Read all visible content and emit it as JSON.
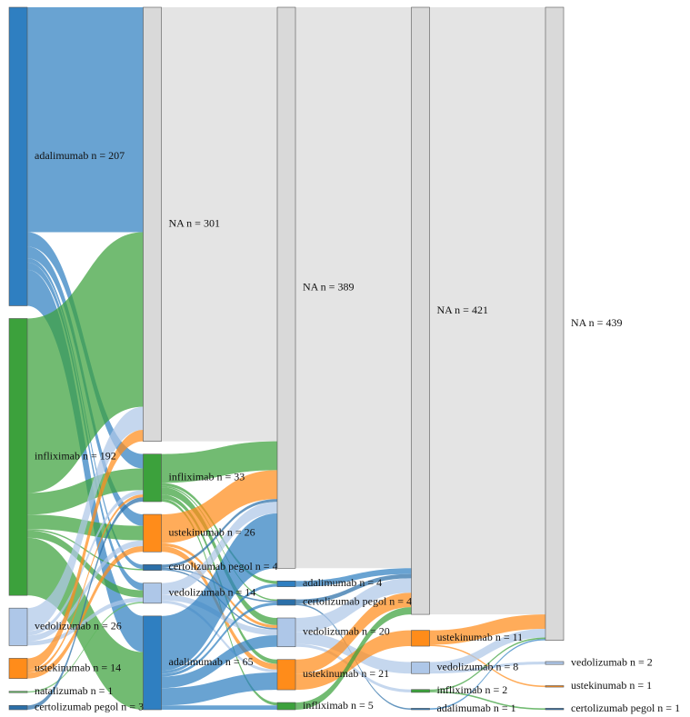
{
  "chart_data": {
    "type": "sankey",
    "columns": [
      {
        "nodes": [
          {
            "label": "adalimumab n = 207",
            "value": 207,
            "color": "#2f7fc1"
          },
          {
            "label": "infliximab n = 192",
            "value": 192,
            "color": "#3ca13c"
          },
          {
            "label": "vedolizumab n = 26",
            "value": 26,
            "color": "#aec7e8"
          },
          {
            "label": "ustekinumab n = 14",
            "value": 14,
            "color": "#ff8c1a"
          },
          {
            "label": "natalizumab n = 1",
            "value": 1,
            "color": "#5fb85f"
          },
          {
            "label": "certolizumab pegol n = 3",
            "value": 3,
            "color": "#2b6fa8"
          }
        ]
      },
      {
        "nodes": [
          {
            "label": "NA n = 301",
            "value": 301,
            "color": "#d9d9d9"
          },
          {
            "label": "infliximab n = 33",
            "value": 33,
            "color": "#3ca13c"
          },
          {
            "label": "ustekinumab n = 26",
            "value": 26,
            "color": "#ff8c1a"
          },
          {
            "label": "certolizumab pegol n = 4",
            "value": 4,
            "color": "#2b6fa8"
          },
          {
            "label": "vedolizumab n = 14",
            "value": 14,
            "color": "#aec7e8"
          },
          {
            "label": "adalimumab n = 65",
            "value": 65,
            "color": "#2f7fc1"
          }
        ]
      },
      {
        "nodes": [
          {
            "label": "NA n = 389",
            "value": 389,
            "color": "#d9d9d9"
          },
          {
            "label": "adalimumab n = 4",
            "value": 4,
            "color": "#2f7fc1"
          },
          {
            "label": "certolizumab pegol n = 4",
            "value": 4,
            "color": "#2b6fa8"
          },
          {
            "label": "vedolizumab n = 20",
            "value": 20,
            "color": "#aec7e8"
          },
          {
            "label": "ustekinumab n = 21",
            "value": 21,
            "color": "#ff8c1a"
          },
          {
            "label": "infliximab n = 5",
            "value": 5,
            "color": "#3ca13c"
          }
        ]
      },
      {
        "nodes": [
          {
            "label": "NA n = 421",
            "value": 421,
            "color": "#d9d9d9"
          },
          {
            "label": "ustekinumab n = 11",
            "value": 11,
            "color": "#ff8c1a"
          },
          {
            "label": "vedolizumab n = 8",
            "value": 8,
            "color": "#aec7e8"
          },
          {
            "label": "infliximab n = 2",
            "value": 2,
            "color": "#3ca13c"
          },
          {
            "label": "adalimumab n = 1",
            "value": 1,
            "color": "#2f7fc1"
          }
        ]
      },
      {
        "nodes": [
          {
            "label": "NA n = 439",
            "value": 439,
            "color": "#d9d9d9"
          },
          {
            "label": "vedolizumab n = 2",
            "value": 2,
            "color": "#aec7e8"
          },
          {
            "label": "ustekinumab n = 1",
            "value": 1,
            "color": "#ff8c1a"
          },
          {
            "label": "certolizumab pegol n = 1",
            "value": 1,
            "color": "#2b6fa8"
          }
        ]
      }
    ],
    "links": [
      {
        "from": [
          0,
          0
        ],
        "to": [
          1,
          0
        ],
        "value": 156
      },
      {
        "from": [
          0,
          0
        ],
        "to": [
          1,
          1
        ],
        "value": 10
      },
      {
        "from": [
          0,
          0
        ],
        "to": [
          1,
          2
        ],
        "value": 8
      },
      {
        "from": [
          0,
          0
        ],
        "to": [
          1,
          3
        ],
        "value": 3
      },
      {
        "from": [
          0,
          0
        ],
        "to": [
          1,
          4
        ],
        "value": 5
      },
      {
        "from": [
          0,
          0
        ],
        "to": [
          1,
          5
        ],
        "value": 25
      },
      {
        "from": [
          0,
          1
        ],
        "to": [
          1,
          0
        ],
        "value": 121
      },
      {
        "from": [
          0,
          1
        ],
        "to": [
          1,
          1
        ],
        "value": 15
      },
      {
        "from": [
          0,
          1
        ],
        "to": [
          1,
          2
        ],
        "value": 10
      },
      {
        "from": [
          0,
          1
        ],
        "to": [
          1,
          3
        ],
        "value": 1
      },
      {
        "from": [
          0,
          1
        ],
        "to": [
          1,
          4
        ],
        "value": 5
      },
      {
        "from": [
          0,
          1
        ],
        "to": [
          1,
          5
        ],
        "value": 40
      },
      {
        "from": [
          0,
          2
        ],
        "to": [
          1,
          0
        ],
        "value": 16
      },
      {
        "from": [
          0,
          2
        ],
        "to": [
          1,
          1
        ],
        "value": 3
      },
      {
        "from": [
          0,
          2
        ],
        "to": [
          1,
          2
        ],
        "value": 4
      },
      {
        "from": [
          0,
          2
        ],
        "to": [
          1,
          4
        ],
        "value": 3
      },
      {
        "from": [
          0,
          3
        ],
        "to": [
          1,
          0
        ],
        "value": 8
      },
      {
        "from": [
          0,
          3
        ],
        "to": [
          1,
          1
        ],
        "value": 2
      },
      {
        "from": [
          0,
          3
        ],
        "to": [
          1,
          2
        ],
        "value": 4
      },
      {
        "from": [
          0,
          4
        ],
        "to": [
          1,
          4
        ],
        "value": 1
      },
      {
        "from": [
          0,
          5
        ],
        "to": [
          1,
          1
        ],
        "value": 3
      },
      {
        "from": [
          1,
          0
        ],
        "to": [
          2,
          0
        ],
        "value": 301
      },
      {
        "from": [
          1,
          1
        ],
        "to": [
          2,
          0
        ],
        "value": 20
      },
      {
        "from": [
          1,
          1
        ],
        "to": [
          2,
          1
        ],
        "value": 2
      },
      {
        "from": [
          1,
          1
        ],
        "to": [
          2,
          2
        ],
        "value": 1
      },
      {
        "from": [
          1,
          1
        ],
        "to": [
          2,
          3
        ],
        "value": 5
      },
      {
        "from": [
          1,
          1
        ],
        "to": [
          2,
          4
        ],
        "value": 3
      },
      {
        "from": [
          1,
          1
        ],
        "to": [
          2,
          5
        ],
        "value": 2
      },
      {
        "from": [
          1,
          2
        ],
        "to": [
          2,
          0
        ],
        "value": 20
      },
      {
        "from": [
          1,
          2
        ],
        "to": [
          2,
          3
        ],
        "value": 2
      },
      {
        "from": [
          1,
          2
        ],
        "to": [
          2,
          4
        ],
        "value": 4
      },
      {
        "from": [
          1,
          3
        ],
        "to": [
          2,
          0
        ],
        "value": 2
      },
      {
        "from": [
          1,
          3
        ],
        "to": [
          2,
          2
        ],
        "value": 1
      },
      {
        "from": [
          1,
          3
        ],
        "to": [
          2,
          3
        ],
        "value": 1
      },
      {
        "from": [
          1,
          4
        ],
        "to": [
          2,
          0
        ],
        "value": 8
      },
      {
        "from": [
          1,
          4
        ],
        "to": [
          2,
          3
        ],
        "value": 4
      },
      {
        "from": [
          1,
          4
        ],
        "to": [
          2,
          4
        ],
        "value": 2
      },
      {
        "from": [
          1,
          5
        ],
        "to": [
          2,
          0
        ],
        "value": 38
      },
      {
        "from": [
          1,
          5
        ],
        "to": [
          2,
          1
        ],
        "value": 2
      },
      {
        "from": [
          1,
          5
        ],
        "to": [
          2,
          2
        ],
        "value": 2
      },
      {
        "from": [
          1,
          5
        ],
        "to": [
          2,
          3
        ],
        "value": 8
      },
      {
        "from": [
          1,
          5
        ],
        "to": [
          2,
          4
        ],
        "value": 12
      },
      {
        "from": [
          1,
          5
        ],
        "to": [
          2,
          5
        ],
        "value": 3
      },
      {
        "from": [
          2,
          0
        ],
        "to": [
          3,
          0
        ],
        "value": 389
      },
      {
        "from": [
          2,
          1
        ],
        "to": [
          3,
          0
        ],
        "value": 4
      },
      {
        "from": [
          2,
          2
        ],
        "to": [
          3,
          0
        ],
        "value": 3
      },
      {
        "from": [
          2,
          2
        ],
        "to": [
          3,
          4
        ],
        "value": 1
      },
      {
        "from": [
          2,
          3
        ],
        "to": [
          3,
          0
        ],
        "value": 10
      },
      {
        "from": [
          2,
          3
        ],
        "to": [
          3,
          2
        ],
        "value": 8
      },
      {
        "from": [
          2,
          3
        ],
        "to": [
          3,
          3
        ],
        "value": 2
      },
      {
        "from": [
          2,
          4
        ],
        "to": [
          3,
          0
        ],
        "value": 10
      },
      {
        "from": [
          2,
          4
        ],
        "to": [
          3,
          1
        ],
        "value": 11
      },
      {
        "from": [
          2,
          5
        ],
        "to": [
          3,
          0
        ],
        "value": 5
      },
      {
        "from": [
          3,
          0
        ],
        "to": [
          4,
          0
        ],
        "value": 421
      },
      {
        "from": [
          3,
          1
        ],
        "to": [
          4,
          0
        ],
        "value": 10
      },
      {
        "from": [
          3,
          1
        ],
        "to": [
          4,
          2
        ],
        "value": 1
      },
      {
        "from": [
          3,
          2
        ],
        "to": [
          4,
          0
        ],
        "value": 6
      },
      {
        "from": [
          3,
          2
        ],
        "to": [
          4,
          1
        ],
        "value": 2
      },
      {
        "from": [
          3,
          3
        ],
        "to": [
          4,
          0
        ],
        "value": 1
      },
      {
        "from": [
          3,
          3
        ],
        "to": [
          4,
          3
        ],
        "value": 1
      },
      {
        "from": [
          3,
          4
        ],
        "to": [
          4,
          0
        ],
        "value": 1
      }
    ]
  }
}
